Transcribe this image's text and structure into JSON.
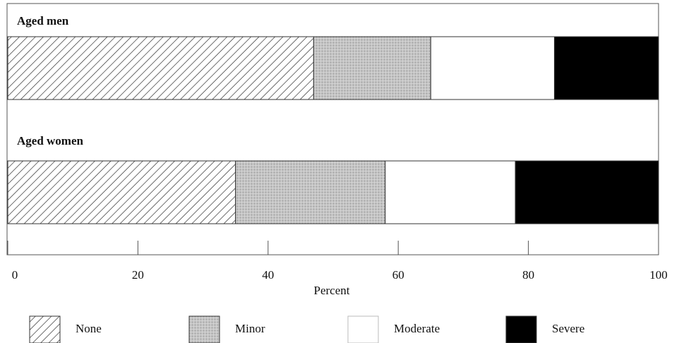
{
  "chart_data": {
    "type": "bar",
    "orientation": "horizontal",
    "stacked": true,
    "categories": [
      "Aged men",
      "Aged women"
    ],
    "series": [
      {
        "name": "None",
        "values": [
          47,
          35
        ]
      },
      {
        "name": "Minor",
        "values": [
          18,
          23
        ]
      },
      {
        "name": "Moderate",
        "values": [
          19,
          20
        ]
      },
      {
        "name": "Severe",
        "values": [
          16,
          22
        ]
      }
    ],
    "xlabel": "Percent",
    "xlim": [
      0,
      100
    ],
    "xticks": [
      0,
      20,
      40,
      60,
      80,
      100
    ],
    "legend_position": "bottom",
    "series_fills": {
      "None": "diagonal-hatch",
      "Minor": "#c8c8c8",
      "Moderate": "#ffffff",
      "Severe": "#000000"
    }
  }
}
